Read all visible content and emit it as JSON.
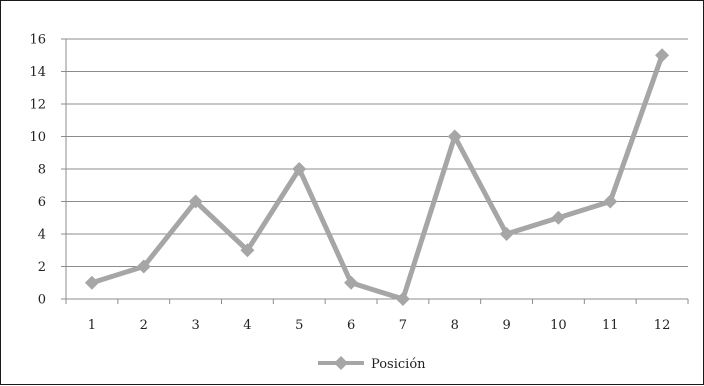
{
  "chart_data": {
    "type": "line",
    "x": [
      "1",
      "2",
      "3",
      "4",
      "5",
      "6",
      "7",
      "8",
      "9",
      "10",
      "11",
      "12"
    ],
    "series": [
      {
        "name": "Posición",
        "values": [
          1,
          2,
          6,
          3,
          8,
          1,
          0,
          10,
          4,
          5,
          6,
          15
        ],
        "color": "#a6a6a6",
        "marker": "diamond"
      }
    ],
    "ylim": [
      0,
      16
    ],
    "yticks": [
      "0",
      "2",
      "4",
      "6",
      "8",
      "10",
      "12",
      "14",
      "16"
    ],
    "grid": "horizontal",
    "legend_position": "bottom",
    "title": "",
    "xlabel": "",
    "ylabel": ""
  }
}
